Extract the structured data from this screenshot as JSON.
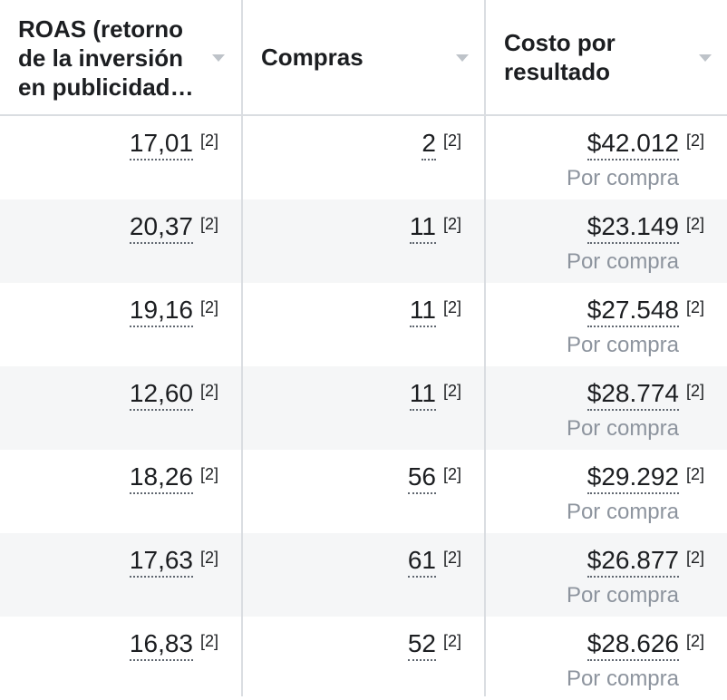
{
  "columns": [
    {
      "label": "ROAS (retorno\nde la inversión\nen publicidad…"
    },
    {
      "label": "Compras"
    },
    {
      "label": "Costo por\nresultado"
    }
  ],
  "footnote": "[2]",
  "result_subtitle": "Por compra",
  "rows": [
    {
      "roas": "17,01",
      "compras": "2",
      "costo": "$42.012"
    },
    {
      "roas": "20,37",
      "compras": "11",
      "costo": "$23.149"
    },
    {
      "roas": "19,16",
      "compras": "11",
      "costo": "$27.548"
    },
    {
      "roas": "12,60",
      "compras": "11",
      "costo": "$28.774"
    },
    {
      "roas": "18,26",
      "compras": "56",
      "costo": "$29.292"
    },
    {
      "roas": "17,63",
      "compras": "61",
      "costo": "$26.877"
    },
    {
      "roas": "16,83",
      "compras": "52",
      "costo": "$28.626"
    }
  ]
}
